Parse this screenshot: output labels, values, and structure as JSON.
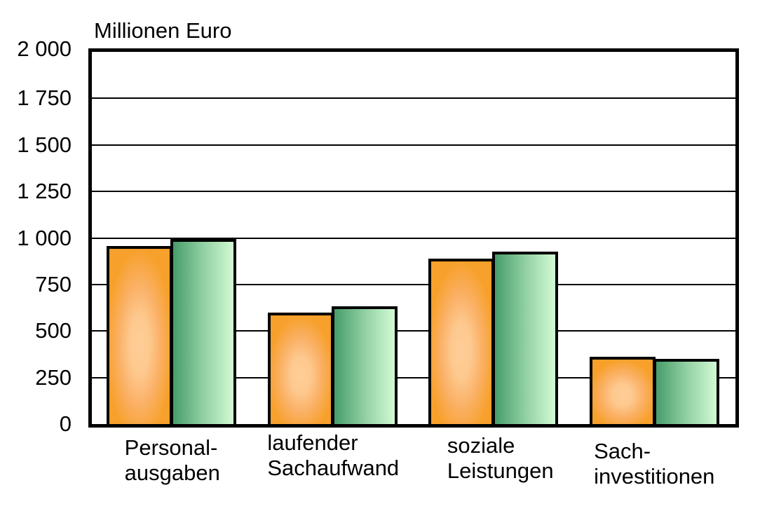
{
  "chart_data": {
    "type": "bar",
    "title": "Millionen Euro",
    "categories": [
      "Personal-ausgaben",
      "laufender Sachaufwand",
      "soziale Leistungen",
      "Sach-investitionen"
    ],
    "category_lines": [
      [
        "Personal-",
        "ausgaben"
      ],
      [
        "laufender",
        "Sachaufwand"
      ],
      [
        "soziale",
        "Leistungen"
      ],
      [
        "Sach-",
        "investitionen"
      ]
    ],
    "series": [
      {
        "name": "orange",
        "values": [
          950,
          590,
          880,
          355
        ],
        "color_edge": "#F7A02B",
        "color_center": "#FECD98",
        "fill": "radial-center"
      },
      {
        "name": "green",
        "values": [
          985,
          625,
          920,
          340
        ],
        "color_dark": "#479D6B",
        "color_light": "#D2FAD3",
        "fill": "linear-left-to-right"
      }
    ],
    "ylabel": "Millionen Euro",
    "xlabel": "",
    "ylim": [
      0,
      2000
    ],
    "ytick_step": 250,
    "ytick_labels": [
      "0",
      "250",
      "500",
      "750",
      "1 000",
      "1 250",
      "1 500",
      "1 750",
      "2 000"
    ],
    "grid": true,
    "legend": "none",
    "bar_border_color": "#000000",
    "plot_border_color": "#000000",
    "background_color": "#FFFFFF"
  }
}
